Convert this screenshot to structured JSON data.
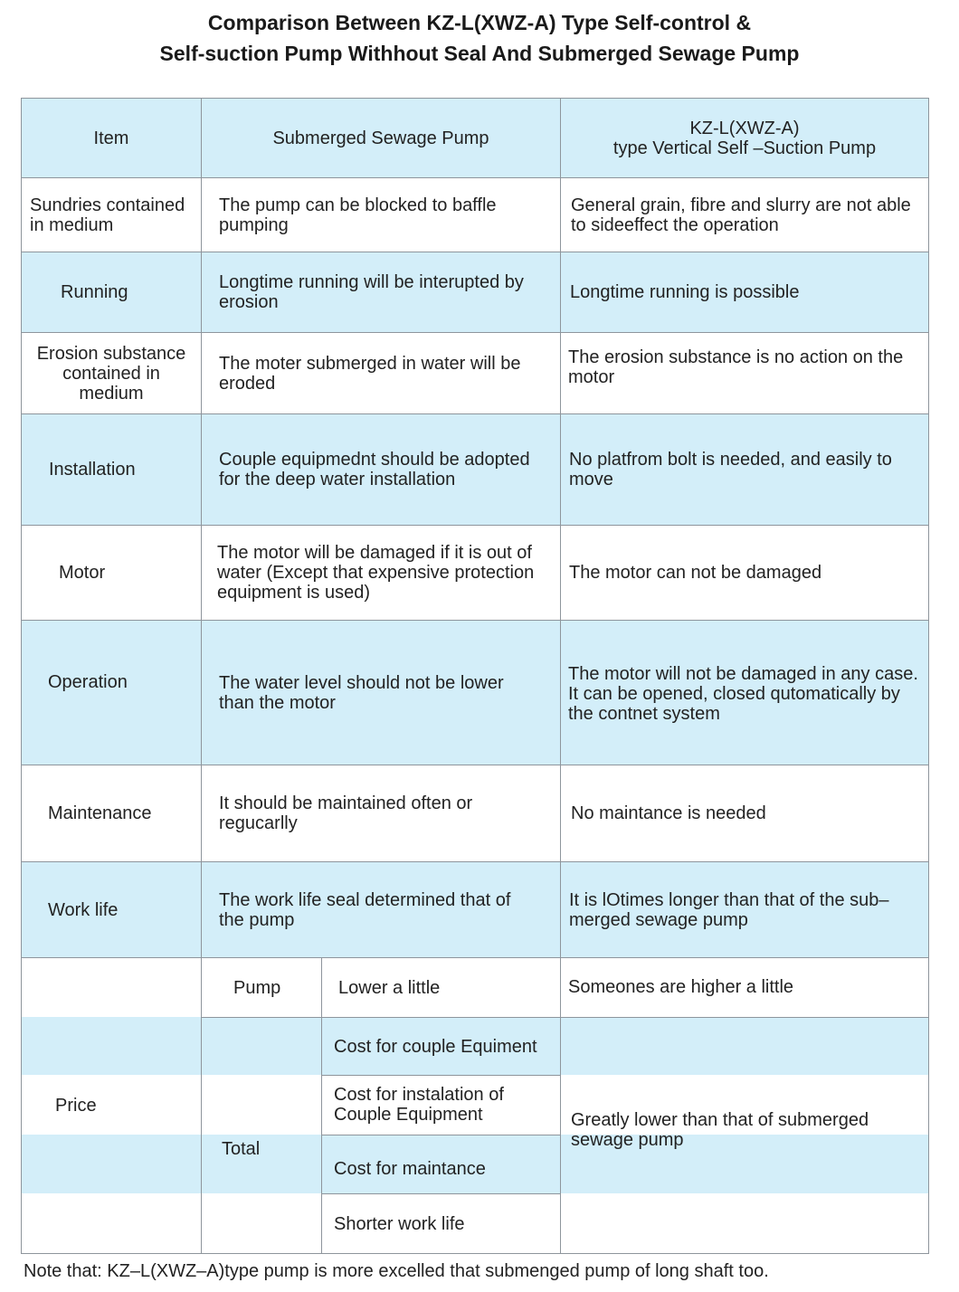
{
  "title": {
    "line1": "Comparison Between KZ-L(XWZ-A) Type Self-control &",
    "line2": "Self-suction Pump Withhout Seal And Submerged Sewage Pump"
  },
  "colors": {
    "band": "#d3eef9",
    "border": "#8e959c"
  },
  "header": {
    "item": "Item",
    "submerged": "Submerged Sewage Pump",
    "kz_line1": "KZ-L(XWZ-A)",
    "kz_line2": "type Vertical Self –Suction Pump"
  },
  "rows": [
    {
      "item": "Sundries contained in medium",
      "submerged": "The pump can be blocked to baffle pumping",
      "kz": "General grain, fibre and slurry are not able to sideeffect the operation"
    },
    {
      "item": "Running",
      "submerged": "Longtime running will be interupted by erosion",
      "kz": "Longtime running is possible"
    },
    {
      "item": "Erosion substance contained in medium",
      "submerged": "The moter submerged in water will be eroded",
      "kz": "The erosion substance is no action on the motor"
    },
    {
      "item": "Installation",
      "submerged": "Couple equipmednt should be adopted for  the  deep  water  installation",
      "kz": "No platfrom bolt is needed, and easily to move"
    },
    {
      "item": "Motor",
      "submerged": "The motor will be damaged if it is out of water (Except that expensive protection equipment is used)",
      "kz": "The motor can not be damaged"
    },
    {
      "item": "Operation",
      "submerged": "The water level should not be lower than the motor",
      "kz": "The motor will not be damaged in any case. It  can  be  opened,  closed  qutomatically by the contnet system"
    },
    {
      "item": "Maintenance",
      "submerged": "It should be maintained often or regucarlly",
      "kz": "No maintance is needed"
    },
    {
      "item": "Work life",
      "submerged": "The work life seal determined that of the pump",
      "kz": "It is lOtimes longer than that of the sub–merged sewage pump"
    }
  ],
  "price": {
    "item": "Price",
    "pump_label": "Pump",
    "pump_submerged": "Lower a little",
    "pump_kz": "Someones are higher a little",
    "total_label": "Total",
    "total_items": [
      "Cost for couple Equiment",
      "Cost for instalation of Couple Equipment",
      "Cost for maintance",
      "Shorter work life"
    ],
    "total_kz": "Greatly lower than that of submerged sewage pump"
  },
  "note": "Note that: KZ–L(XWZ–A)type pump is more excelled that submenged pump of long shaft too."
}
